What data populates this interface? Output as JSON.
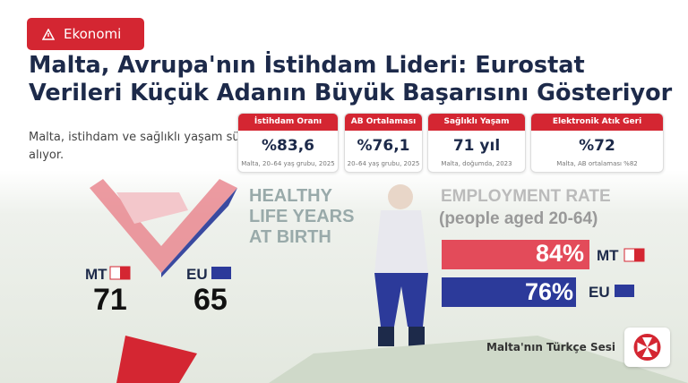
{
  "badge": "Ekonomi",
  "title": "Malta, Avrupa'nın İstihdam Lideri: Eurostat Verileri Küçük Adanın Büyük Başarısını Gösteriyor",
  "summary": {
    "line1": "Malta, istihdam ve sağlıklı yaşam sür",
    "line2": "alıyor."
  },
  "cards": [
    {
      "label": "İstihdam Oranı",
      "value": "%83,6",
      "note": "Malta, 20–64 yaş grubu, 2025"
    },
    {
      "label": "AB Ortalaması",
      "value": "%76,1",
      "note": "20–64 yaş grubu, 2025"
    },
    {
      "label": "Sağlıklı Yaşam Süresi",
      "value": "71 yıl",
      "note": "Malta, doğumda, 2023"
    },
    {
      "label": "Elektronik Atık Geri Dönüşüm",
      "value": "%72",
      "note": "Malta, AB ortalaması %82"
    }
  ],
  "infographic": {
    "healthy": {
      "line1": "HEALTHY",
      "line2": "LIFE YEARS",
      "line3": "AT BIRTH",
      "mt_label": "MT",
      "mt_value": "71",
      "eu_label": "EU",
      "eu_value": "65"
    },
    "employment": {
      "title": "EMPLOYMENT RATE",
      "subtitle": "(people aged 20-64)",
      "mt_value": "84%",
      "mt_label": "MT",
      "eu_value": "76%",
      "eu_label": "EU"
    }
  },
  "footer": "Malta'nın Türkçe Sesi"
}
